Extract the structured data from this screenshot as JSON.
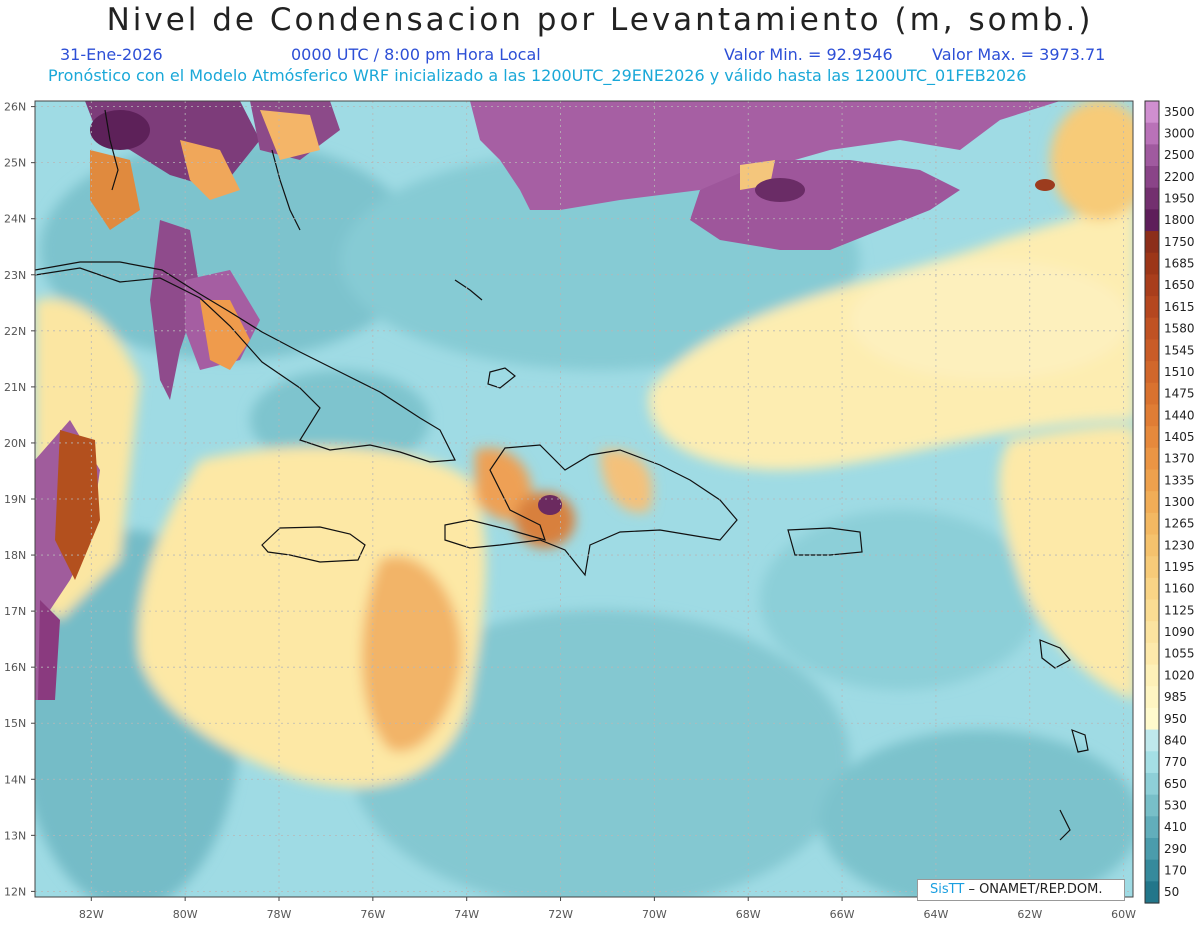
{
  "title": "Nivel de Condensacion por Levantamiento (m, somb.)",
  "date": "31-Ene-2026",
  "time": "0000 UTC / 8:00 pm Hora Local",
  "min_label": "Valor Min. = 92.9546",
  "max_label": "Valor Max. = 3973.71",
  "forecast": "Pronóstico con el Modelo Atmósferico WRF inicializado a las 1200UTC_29ENE2026 y válido hasta las  1200UTC_01FEB2026",
  "credit": {
    "brand": "SisTT",
    "org": "– ONAMET/REP.DOM."
  },
  "lat_labels": [
    "26N",
    "25N",
    "24N",
    "23N",
    "22N",
    "21N",
    "20N",
    "19N",
    "18N",
    "17N",
    "16N",
    "15N",
    "14N",
    "13N",
    "12N"
  ],
  "lon_labels": [
    "82W",
    "80W",
    "78W",
    "76W",
    "74W",
    "72W",
    "70W",
    "68W",
    "66W",
    "64W",
    "62W",
    "60W"
  ],
  "colorbar": {
    "labels": [
      "3500",
      "3000",
      "2500",
      "2200",
      "1950",
      "1800",
      "1750",
      "1685",
      "1650",
      "1615",
      "1580",
      "1545",
      "1510",
      "1475",
      "1440",
      "1405",
      "1370",
      "1335",
      "1300",
      "1265",
      "1230",
      "1195",
      "1160",
      "1125",
      "1090",
      "1055",
      "1020",
      "985",
      "950",
      "840",
      "770",
      "650",
      "530",
      "410",
      "290",
      "170",
      "50"
    ],
    "colors": [
      "#d08fd0",
      "#b972b8",
      "#a05a9f",
      "#8a4488",
      "#73306f",
      "#5e1e5a",
      "#8c2e1a",
      "#9c3618",
      "#a93e1c",
      "#b5471f",
      "#c05223",
      "#c95c27",
      "#d1672b",
      "#d9722f",
      "#e07d35",
      "#e6893c",
      "#eb9544",
      "#eea14d",
      "#f1ad57",
      "#f3b862",
      "#f5c26d",
      "#f7cb79",
      "#f9d486",
      "#fadc93",
      "#fbe3a0",
      "#fde9ab",
      "#fdf0b8",
      "#fef5c2",
      "#fffacd",
      "#bfe8ec",
      "#a5dfe5",
      "#8ecfd7",
      "#78bfc8",
      "#62aebb",
      "#4b9cac",
      "#368a9c",
      "#22768a"
    ]
  }
}
